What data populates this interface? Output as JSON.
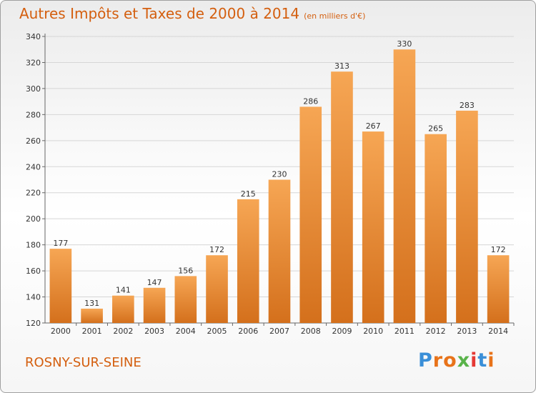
{
  "header": {
    "title": "Autres Impôts et Taxes de 2000 à 2014",
    "unit": "(en milliers d'€)"
  },
  "footer": {
    "commune": "ROSNY-SUR-SEINE",
    "logo": "Proxiti"
  },
  "colors": {
    "accent": "#d45f0f",
    "bar_top": "#f6a654",
    "bar_bottom": "#d4701c"
  },
  "chart_data": {
    "type": "bar",
    "title": "Autres Impôts et Taxes de 2000 à 2014",
    "subtitle": "(en milliers d'€)",
    "categories": [
      "2000",
      "2001",
      "2002",
      "2003",
      "2004",
      "2005",
      "2006",
      "2007",
      "2008",
      "2009",
      "2010",
      "2011",
      "2012",
      "2013",
      "2014"
    ],
    "values": [
      177,
      131,
      141,
      147,
      156,
      172,
      215,
      230,
      286,
      313,
      267,
      330,
      265,
      283,
      172
    ],
    "ylim": [
      120,
      340
    ],
    "yticks": [
      120,
      140,
      160,
      180,
      200,
      220,
      240,
      260,
      280,
      300,
      320,
      340
    ],
    "xlabel": "",
    "ylabel": "",
    "grid": true
  }
}
